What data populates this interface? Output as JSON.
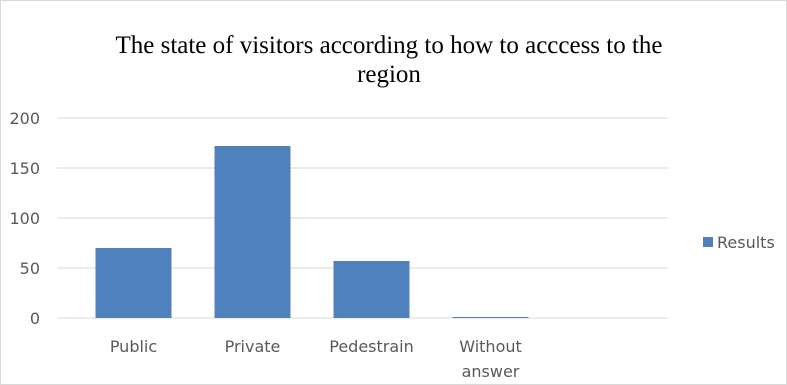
{
  "chart_data": {
    "type": "bar",
    "title_lines": [
      "The state  of visitors according to how to acccess to the",
      "region"
    ],
    "categories": [
      "Public",
      "Private",
      "Pedestrain",
      "Without answer"
    ],
    "category_lines": [
      [
        "Public"
      ],
      [
        "Private"
      ],
      [
        "Pedestrain"
      ],
      [
        "Without",
        "answer"
      ]
    ],
    "series": [
      {
        "name": "Results",
        "values": [
          70,
          172,
          57,
          1
        ],
        "color": "#4f81bd"
      }
    ],
    "xlabel": "",
    "ylabel": "",
    "ylim": [
      0,
      200
    ],
    "yticks": [
      0,
      50,
      100,
      150,
      200
    ],
    "grid": true,
    "grid_color": "#d9d9d9",
    "legend_position": "right"
  }
}
